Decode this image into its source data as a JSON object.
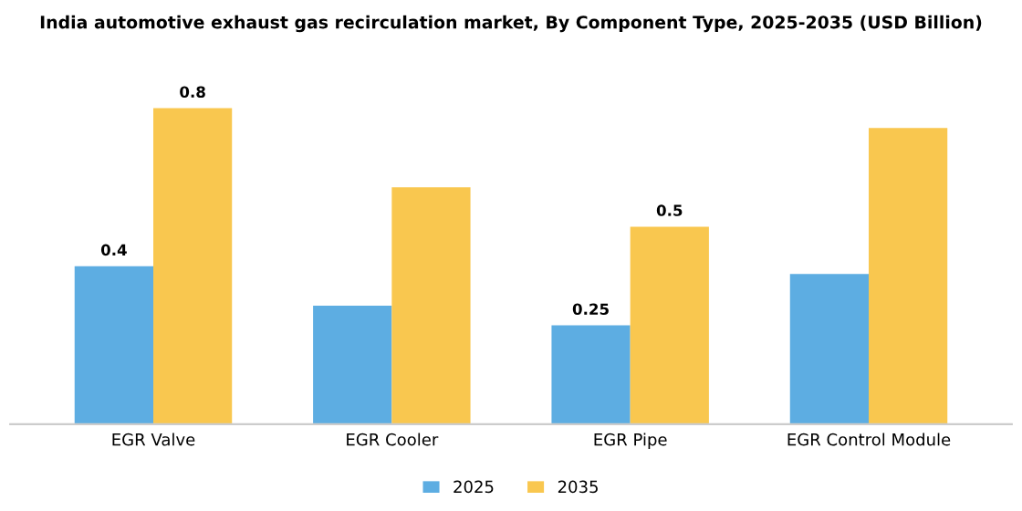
{
  "chart_data": {
    "type": "bar",
    "title": "India automotive exhaust gas recirculation market, By Component Type, 2025-2035 (USD Billion)",
    "categories": [
      "EGR Valve",
      "EGR Cooler",
      "EGR Pipe",
      "EGR Control Module"
    ],
    "series": [
      {
        "name": "2025",
        "color": "#5dade2",
        "values": [
          0.4,
          0.3,
          0.25,
          0.38
        ],
        "value_labels": [
          "0.4",
          null,
          "0.25",
          null
        ]
      },
      {
        "name": "2035",
        "color": "#f9c74f",
        "values": [
          0.8,
          0.6,
          0.5,
          0.75
        ],
        "value_labels": [
          "0.8",
          null,
          "0.5",
          null
        ]
      }
    ],
    "legend": "bottom",
    "grid": false
  }
}
